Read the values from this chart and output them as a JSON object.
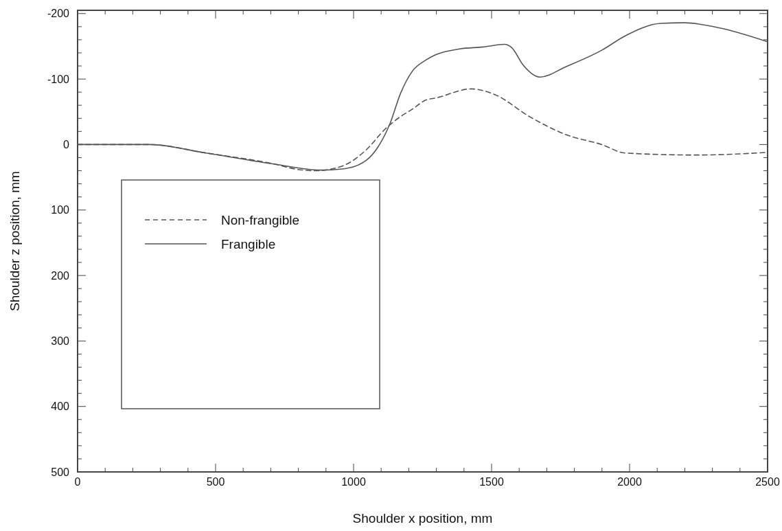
{
  "chart_data": {
    "type": "line",
    "xlabel": "Shoulder x position, mm",
    "ylabel": "Shoulder z position, mm",
    "xlim": [
      0,
      2500
    ],
    "ylim": [
      500,
      -205
    ],
    "xticks": [
      0,
      {
        "value": 100,
        "label": null
      },
      {
        "value": 200,
        "label": null
      },
      {
        "value": 300,
        "label": null
      },
      {
        "value": 400,
        "label": null
      },
      500,
      {
        "value": 600,
        "label": null
      },
      {
        "value": 700,
        "label": null
      },
      {
        "value": 800,
        "label": null
      },
      {
        "value": 900,
        "label": null
      },
      1000,
      {
        "value": 1100,
        "label": null
      },
      {
        "value": 1200,
        "label": null
      },
      {
        "value": 1300,
        "label": null
      },
      {
        "value": 1400,
        "label": null
      },
      1500,
      {
        "value": 1600,
        "label": null
      },
      {
        "value": 1700,
        "label": null
      },
      {
        "value": 1800,
        "label": null
      },
      {
        "value": 1900,
        "label": null
      },
      2000,
      {
        "value": 2100,
        "label": null
      },
      {
        "value": 2200,
        "label": null
      },
      {
        "value": 2300,
        "label": null
      },
      {
        "value": 2400,
        "label": null
      },
      2500
    ],
    "yticks": [
      -200,
      {
        "value": -180,
        "label": null
      },
      {
        "value": -160,
        "label": null
      },
      {
        "value": -140,
        "label": null
      },
      {
        "value": -120,
        "label": null
      },
      -100,
      {
        "value": -80,
        "label": null
      },
      {
        "value": -60,
        "label": null
      },
      {
        "value": -40,
        "label": null
      },
      {
        "value": -20,
        "label": null
      },
      0,
      {
        "value": 20,
        "label": null
      },
      {
        "value": 40,
        "label": null
      },
      {
        "value": 60,
        "label": null
      },
      {
        "value": 80,
        "label": null
      },
      100,
      {
        "value": 120,
        "label": null
      },
      {
        "value": 140,
        "label": null
      },
      {
        "value": 160,
        "label": null
      },
      {
        "value": 180,
        "label": null
      },
      200,
      {
        "value": 220,
        "label": null
      },
      {
        "value": 240,
        "label": null
      },
      {
        "value": 260,
        "label": null
      },
      {
        "value": 280,
        "label": null
      },
      300,
      {
        "value": 320,
        "label": null
      },
      {
        "value": 340,
        "label": null
      },
      {
        "value": 360,
        "label": null
      },
      {
        "value": 380,
        "label": null
      },
      400,
      {
        "value": 420,
        "label": null
      },
      {
        "value": 440,
        "label": null
      },
      {
        "value": 460,
        "label": null
      },
      {
        "value": 480,
        "label": null
      },
      500
    ],
    "grid": false,
    "legend": "left",
    "marker": "none",
    "series": [
      {
        "name": "Non-frangible",
        "color": "#555555",
        "line_style": "dashed",
        "x": [
          0,
          260,
          466,
          715,
          797,
          864,
          964,
          1046,
          1113,
          1171,
          1213,
          1262,
          1297,
          1426,
          1513,
          1640,
          1770,
          1899,
          1984,
          2243,
          2500
        ],
        "values": [
          0,
          0,
          13,
          30,
          38,
          40,
          32,
          8,
          -23,
          -43,
          -54,
          -68,
          -71,
          -85,
          -76,
          -42,
          -15,
          0,
          13,
          16,
          12
        ]
      },
      {
        "name": "Frangible",
        "color": "#555555",
        "line_style": "solid",
        "x": [
          0,
          259,
          466,
          715,
          881,
          964,
          1046,
          1088,
          1130,
          1171,
          1213,
          1262,
          1297,
          1384,
          1469,
          1547,
          1573,
          1615,
          1675,
          1770,
          1899,
          1984,
          2113,
          2199,
          2327,
          2500
        ],
        "values": [
          0,
          0,
          13,
          30,
          39,
          37,
          24,
          4,
          -30,
          -79,
          -112,
          -129,
          -137,
          -146,
          -149,
          -153,
          -148,
          -121,
          -103,
          -119,
          -144,
          -166,
          -185,
          -186,
          -178,
          -157
        ]
      }
    ]
  }
}
